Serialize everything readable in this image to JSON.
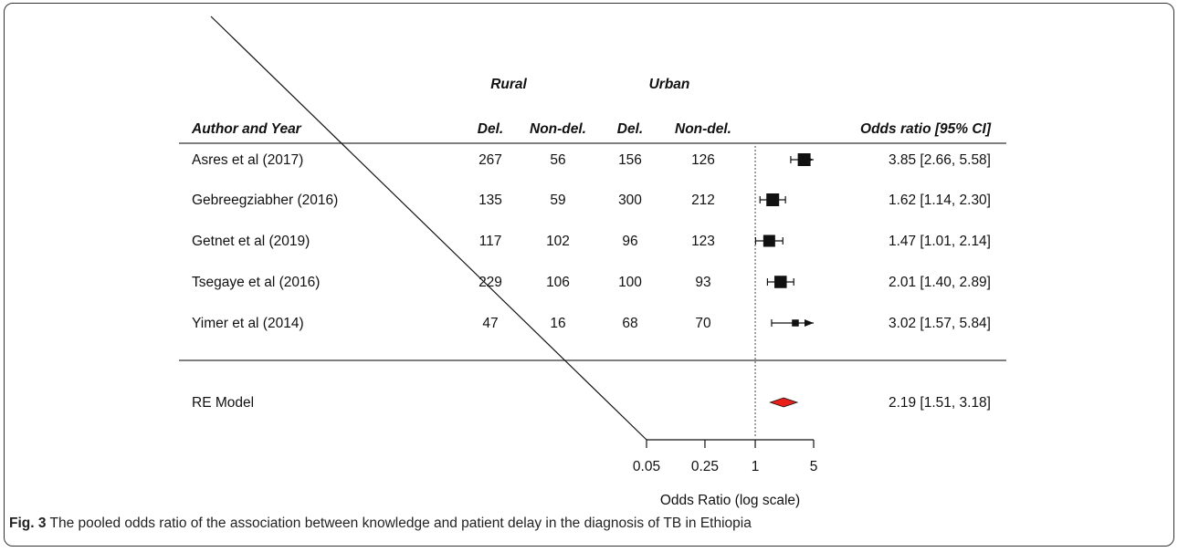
{
  "chart_data": {
    "type": "forest",
    "group_headers": [
      "Rural",
      "Urban"
    ],
    "columns": {
      "study": "Author and Year",
      "del_1": "Del.",
      "nondel_1": "Non-del.",
      "del_2": "Del.",
      "nondel_2": "Non-del.",
      "estimate": "Odds ratio [95% CI]"
    },
    "studies": [
      {
        "label": "Asres et al (2017)",
        "rural_del": "267",
        "rural_nondel": "56",
        "urban_del": "156",
        "urban_nondel": "126",
        "or": 3.85,
        "lo": 2.66,
        "hi": 5.58,
        "weight": 1.0,
        "text": "3.85 [2.66, 5.58]"
      },
      {
        "label": "Gebreegziabher (2016)",
        "rural_del": "135",
        "rural_nondel": "59",
        "urban_del": "300",
        "urban_nondel": "212",
        "or": 1.62,
        "lo": 1.14,
        "hi": 2.3,
        "weight": 1.0,
        "text": "1.62 [1.14, 2.30]"
      },
      {
        "label": "Getnet et al (2019)",
        "rural_del": "117",
        "rural_nondel": "102",
        "urban_del": "96",
        "urban_nondel": "123",
        "or": 1.47,
        "lo": 1.01,
        "hi": 2.14,
        "weight": 0.9,
        "text": "1.47 [1.01, 2.14]"
      },
      {
        "label": "Tsegaye et al (2016)",
        "rural_del": "229",
        "rural_nondel": "106",
        "urban_del": "100",
        "urban_nondel": "93",
        "or": 2.01,
        "lo": 1.4,
        "hi": 2.89,
        "weight": 0.95,
        "text": "2.01 [1.40, 2.89]"
      },
      {
        "label": "Yimer et al (2014)",
        "rural_del": "47",
        "rural_nondel": "16",
        "urban_del": "68",
        "urban_nondel": "70",
        "or": 3.02,
        "lo": 1.57,
        "hi": 5.84,
        "weight": 0.35,
        "text": "3.02 [1.57, 5.84]"
      }
    ],
    "summary": {
      "label": "RE Model",
      "or": 2.19,
      "lo": 1.51,
      "hi": 3.18,
      "text": "2.19 [1.51, 3.18]",
      "color": "#e8201a"
    },
    "x_axis": {
      "scale": "log",
      "ticks": [
        0.05,
        0.25,
        1,
        5
      ],
      "tick_labels": [
        "0.05",
        "0.25",
        "1",
        "5"
      ],
      "label": "Odds Ratio (log scale)",
      "reference_line": 1
    }
  },
  "caption": {
    "label": "Fig. 3",
    "text": " The pooled odds ratio of the association between knowledge and patient delay in the diagnosis of TB in Ethiopia"
  }
}
